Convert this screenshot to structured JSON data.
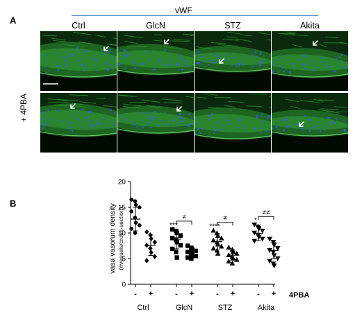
{
  "panelA": {
    "letter": "A",
    "stain": "vWF",
    "columns": [
      "Ctrl",
      "GlcN",
      "STZ",
      "Akita"
    ],
    "row2_label": "+ 4PBA"
  },
  "panelB": {
    "letter": "B",
    "treatment_label": "4PBA"
  },
  "chart_data": {
    "type": "scatter",
    "ylabel": "vasa vasorum density",
    "ylabel2": "(#vessels/cross-section)",
    "ylim": [
      0,
      20
    ],
    "yticks": [
      0,
      5,
      10,
      15,
      20
    ],
    "categories": [
      "Ctrl",
      "GlcN",
      "STZ",
      "Akita"
    ],
    "sub_labels": [
      "-",
      "+"
    ],
    "groups": [
      {
        "group": "Ctrl",
        "treat": "-",
        "marker": "circle",
        "mean": 12.7,
        "sd": 2.3,
        "values": [
          16.5,
          16.2,
          15.5,
          15.0,
          14.2,
          13.0,
          12.0,
          11.5,
          10.8,
          10.0
        ]
      },
      {
        "group": "Ctrl",
        "treat": "+",
        "marker": "diamond",
        "mean": 7.6,
        "sd": 2.0,
        "values": [
          10.2,
          9.6,
          8.9,
          8.2,
          7.6,
          7.0,
          6.2,
          5.4,
          4.6
        ]
      },
      {
        "group": "GlcN",
        "treat": "-",
        "marker": "square",
        "mean": 8.8,
        "sd": 1.9,
        "values": [
          10.7,
          10.4,
          10.0,
          9.5,
          9.0,
          8.7,
          8.2,
          7.6,
          6.9,
          6.3,
          5.2
        ]
      },
      {
        "group": "GlcN",
        "treat": "+",
        "marker": "square",
        "mean": 6.2,
        "sd": 0.9,
        "values": [
          7.5,
          7.1,
          6.8,
          6.5,
          6.3,
          6.0,
          5.8,
          5.5,
          5.2,
          5.0
        ]
      },
      {
        "group": "STZ",
        "treat": "-",
        "marker": "triangle-up",
        "mean": 8.3,
        "sd": 1.6,
        "values": [
          10.5,
          10.0,
          9.5,
          9.0,
          8.6,
          8.2,
          7.8,
          7.4,
          7.0,
          6.6,
          6.0
        ]
      },
      {
        "group": "STZ",
        "treat": "+",
        "marker": "triangle-up",
        "mean": 5.7,
        "sd": 1.0,
        "values": [
          7.2,
          6.8,
          6.4,
          6.0,
          5.7,
          5.4,
          5.1,
          4.8,
          4.5,
          4.1
        ]
      },
      {
        "group": "Akita",
        "treat": "-",
        "marker": "triangle-down",
        "mean": 9.9,
        "sd": 1.4,
        "values": [
          11.6,
          11.2,
          10.8,
          10.4,
          10.0,
          9.6,
          9.2,
          8.8,
          8.4
        ]
      },
      {
        "group": "Akita",
        "treat": "+",
        "marker": "triangle-down",
        "mean": 6.6,
        "sd": 1.6,
        "values": [
          8.8,
          8.2,
          7.6,
          7.0,
          6.6,
          6.2,
          5.6,
          5.0,
          4.5,
          4.0,
          3.6
        ]
      }
    ],
    "annotations": [
      {
        "text": "***",
        "group": "GlcN",
        "treat": "-"
      },
      {
        "text": "****",
        "group": "STZ",
        "treat": "-"
      },
      {
        "text": "*",
        "group": "Akita",
        "treat": "-"
      }
    ],
    "brackets": [
      {
        "text": "≠",
        "group": "GlcN"
      },
      {
        "text": "≠",
        "group": "STZ"
      },
      {
        "text": "≠≠",
        "group": "Akita"
      }
    ]
  }
}
